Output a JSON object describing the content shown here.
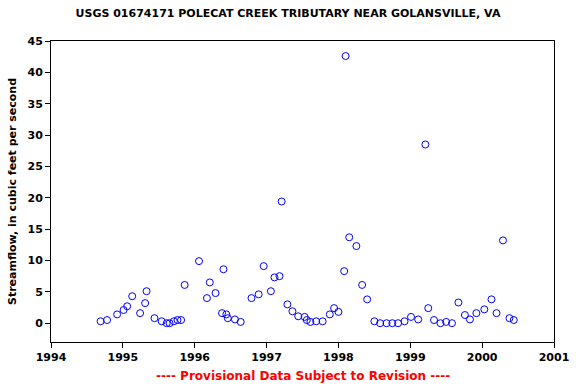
{
  "chart_data": {
    "type": "scatter",
    "title": "USGS 01674171 POLECAT CREEK TRIBUTARY NEAR GOLANSVILLE, VA",
    "y_label": "Streamflow, in cubic feet per second",
    "annotations": [
      "---- Provisional Data Subject to Revision ----"
    ],
    "x": [
      1994.69,
      1994.78,
      1994.92,
      1995.01,
      1995.06,
      1995.13,
      1995.24,
      1995.31,
      1995.33,
      1995.44,
      1995.54,
      1995.61,
      1995.65,
      1995.71,
      1995.76,
      1995.81,
      1995.86,
      1996.06,
      1996.17,
      1996.21,
      1996.29,
      1996.38,
      1996.4,
      1996.44,
      1996.46,
      1996.56,
      1996.64,
      1996.79,
      1996.89,
      1996.96,
      1997.06,
      1997.11,
      1997.18,
      1997.21,
      1997.29,
      1997.36,
      1997.44,
      1997.53,
      1997.56,
      1997.61,
      1997.69,
      1997.78,
      1997.88,
      1997.94,
      1998.0,
      1998.08,
      1998.1,
      1998.15,
      1998.25,
      1998.33,
      1998.4,
      1998.5,
      1998.58,
      1998.67,
      1998.75,
      1998.83,
      1998.92,
      1999.01,
      1999.11,
      1999.21,
      1999.25,
      1999.33,
      1999.42,
      1999.5,
      1999.58,
      1999.67,
      1999.76,
      1999.83,
      1999.92,
      2000.03,
      2000.13,
      2000.2,
      2000.29,
      2000.38,
      2000.44
    ],
    "values": [
      0.3,
      0.5,
      1.4,
      2.1,
      2.7,
      4.3,
      1.6,
      3.2,
      5.1,
      0.8,
      0.3,
      0,
      0,
      0.3,
      0.5,
      0.5,
      6.1,
      9.9,
      4.0,
      6.5,
      4.8,
      1.6,
      8.6,
      1.4,
      0.8,
      0.6,
      0.2,
      4.0,
      4.6,
      9.1,
      5.1,
      7.3,
      7.5,
      19.4,
      3.0,
      1.9,
      1.1,
      1.0,
      0.5,
      0.2,
      0.3,
      0.3,
      1.4,
      2.4,
      1.8,
      8.3,
      42.6,
      13.7,
      12.3,
      6.1,
      3.8,
      0.3,
      0,
      0,
      0,
      0,
      0.3,
      1.0,
      0.6,
      28.5,
      2.4,
      0.5,
      0,
      0.2,
      0,
      3.3,
      1.3,
      0.6,
      1.6,
      2.2,
      3.8,
      1.6,
      13.2,
      0.8,
      0.5
    ],
    "color": "#0000ff",
    "marker": "circle-open",
    "xlim": [
      1994,
      2001
    ],
    "xticks": [
      1994,
      1995,
      1996,
      1997,
      1998,
      1999,
      2000,
      2001
    ],
    "ylim": [
      -3,
      45
    ],
    "yticks": [
      0,
      5,
      10,
      15,
      20,
      25,
      30,
      35,
      40,
      45
    ],
    "grid": false
  }
}
